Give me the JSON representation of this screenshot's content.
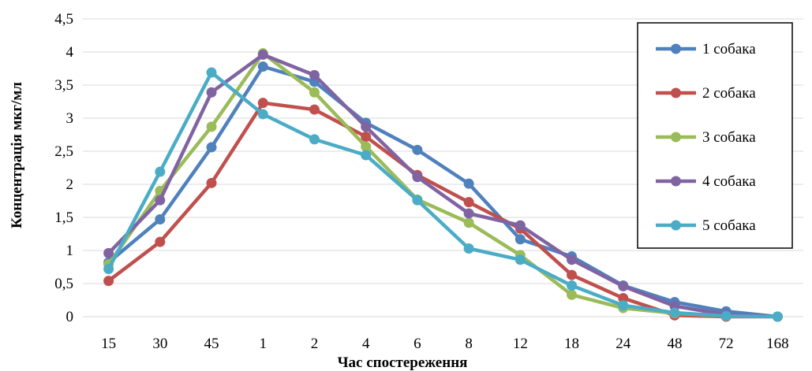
{
  "chart_data": {
    "type": "line",
    "title": "",
    "xlabel": "Час спостереження",
    "ylabel": "Концентрація мкг/мл",
    "categories": [
      "15",
      "30",
      "45",
      "1",
      "2",
      "4",
      "6",
      "8",
      "12",
      "18",
      "24",
      "48",
      "72",
      "168"
    ],
    "ylim": [
      0,
      4.5
    ],
    "yticks": [
      "0",
      "0,5",
      "1",
      "1,5",
      "2",
      "2,5",
      "3",
      "3,5",
      "4",
      "4,5"
    ],
    "grid": true,
    "legend_position": "top-right",
    "series": [
      {
        "name": "1 собака",
        "color": "#4f81bd",
        "values": [
          0.82,
          1.47,
          2.56,
          3.78,
          3.55,
          2.93,
          2.52,
          2.01,
          1.17,
          0.91,
          0.47,
          0.22,
          0.08,
          0.0
        ]
      },
      {
        "name": "2 собака",
        "color": "#c0504d",
        "values": [
          0.54,
          1.13,
          2.02,
          3.23,
          3.13,
          2.72,
          2.14,
          1.73,
          1.33,
          0.63,
          0.28,
          0.02,
          0.0,
          0.0
        ]
      },
      {
        "name": "3 собака",
        "color": "#9bbb59",
        "values": [
          0.79,
          1.9,
          2.87,
          3.98,
          3.39,
          2.57,
          1.77,
          1.42,
          0.93,
          0.33,
          0.13,
          0.05,
          0.01,
          0.0
        ]
      },
      {
        "name": "4 собака",
        "color": "#8064a2",
        "values": [
          0.96,
          1.76,
          3.39,
          3.96,
          3.65,
          2.87,
          2.11,
          1.56,
          1.38,
          0.86,
          0.46,
          0.16,
          0.03,
          0.0
        ]
      },
      {
        "name": "5 собака",
        "color": "#4bacc6",
        "values": [
          0.72,
          2.19,
          3.69,
          3.06,
          2.68,
          2.44,
          1.76,
          1.03,
          0.86,
          0.47,
          0.17,
          0.06,
          0.01,
          0.0
        ]
      }
    ]
  }
}
